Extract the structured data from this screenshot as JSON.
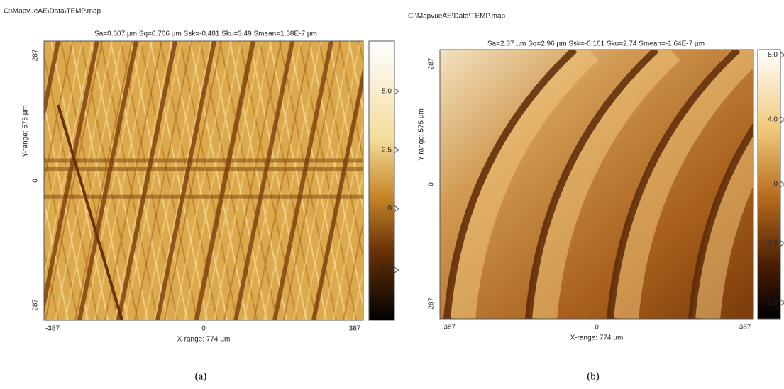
{
  "panels": [
    {
      "file_path": "C:\\MapvueAE\\Data\\TEMP.map",
      "statistics": "Sa=0.607 µm  Sq=0.766 µm  Ssk=-0.481  Sku=3.49  Smean=1.38E-7 µm",
      "y_axis": {
        "label": "Y-range:  575 µm",
        "ticks": [
          "287",
          "0",
          "-287"
        ]
      },
      "x_axis": {
        "label": "X-range:  774 µm",
        "ticks": [
          "-387",
          "0",
          "387"
        ]
      },
      "colorbar_ticks": [
        "5.0",
        "2.5",
        "0",
        "-2.5"
      ],
      "caption": "(a)"
    },
    {
      "file_path": "C:\\MapvueAE\\Data\\TEMP.map",
      "statistics": "Sa=2.37 µm  Sq=2.96 µm  Ssk=-0.161  Sku=2.74  Smean=-1.64E-7 µm",
      "y_axis": {
        "label": "Y-range:  575 µm",
        "ticks": [
          "287",
          "0",
          "-287"
        ]
      },
      "x_axis": {
        "label": "X-range:  774 µm",
        "ticks": [
          "-387",
          "0",
          "387"
        ]
      },
      "colorbar_ticks": [
        "8.0",
        "4.0",
        "0",
        "-4.0",
        "-8.0"
      ],
      "caption": "(b)"
    }
  ]
}
